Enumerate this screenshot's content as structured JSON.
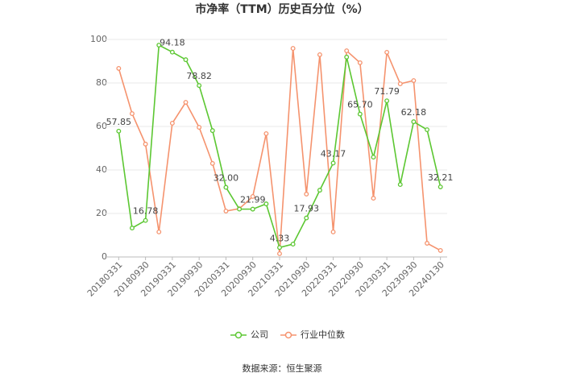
{
  "chart_data": {
    "type": "line",
    "title": "市净率（TTM）历史百分位（%）",
    "categories": [
      "20180331",
      null,
      "20180930",
      null,
      "20190331",
      null,
      "20190930",
      null,
      "20200331",
      null,
      "20200930",
      null,
      "20210331",
      null,
      "20210930",
      null,
      "20220331",
      null,
      "20220930",
      null,
      "20230331",
      null,
      "20230930",
      null,
      "20240130"
    ],
    "series": [
      {
        "name": "公司",
        "color": "#5cc732",
        "values": [
          57.85,
          13.3,
          16.78,
          97.4,
          94.18,
          90.7,
          78.82,
          58.1,
          32.0,
          22.0,
          21.99,
          24.4,
          4.33,
          5.9,
          17.93,
          30.7,
          43.17,
          91.9,
          65.7,
          45.9,
          71.79,
          33.3,
          62.18,
          58.5,
          32.21
        ],
        "value_labels": [
          "57.85",
          null,
          "16.78",
          null,
          "94.18",
          null,
          "78.82",
          null,
          "32.00",
          null,
          "21.99",
          null,
          "4.33",
          null,
          "17.93",
          null,
          "43.17",
          null,
          "65.70",
          null,
          "71.79",
          null,
          "62.18",
          null,
          "32.21"
        ]
      },
      {
        "name": "行业中位数",
        "color": "#f5936e",
        "values": [
          86.7,
          65.9,
          51.9,
          11.5,
          61.5,
          71.1,
          59.6,
          43.0,
          21.1,
          22.2,
          27.8,
          56.7,
          1.5,
          95.9,
          28.9,
          93.0,
          11.5,
          94.8,
          89.3,
          27.0,
          94.1,
          79.6,
          81.1,
          6.3,
          3.0
        ]
      }
    ],
    "ylim": [
      0,
      100
    ],
    "yticks": [
      0,
      20,
      40,
      60,
      80,
      100
    ],
    "grid": true,
    "source": "数据来源：恒生聚源"
  }
}
